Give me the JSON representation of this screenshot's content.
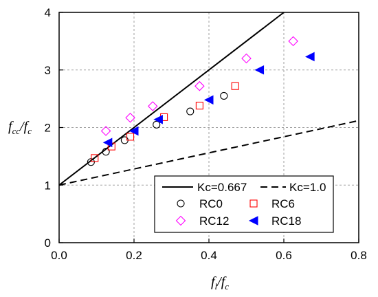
{
  "chart_data": {
    "type": "scatter",
    "title": "",
    "xlabel": {
      "main": "f",
      "sub": "l",
      "sep": "/",
      "den": "f",
      "den_sub": "c"
    },
    "ylabel": {
      "main": "f",
      "sub": "cc",
      "sep": "/",
      "den": "f",
      "den_sub": "c"
    },
    "xlim": [
      0,
      0.8
    ],
    "ylim": [
      0,
      4
    ],
    "x_ticks": [
      "0.0",
      "0.2",
      "0.4",
      "0.6",
      "0.8"
    ],
    "y_ticks": [
      "0",
      "1",
      "2",
      "3",
      "4"
    ],
    "grid": true,
    "legend_position": "bottom-right",
    "lines": [
      {
        "name": "Kc=0.667",
        "style": "solid",
        "intercept": 1,
        "slope": 5.0
      },
      {
        "name": "Kc=1.0",
        "style": "dashed",
        "intercept": 1,
        "slope": 1.4
      }
    ],
    "series": [
      {
        "name": "RC0",
        "marker": "circle",
        "color": "#000000",
        "points": [
          [
            0.085,
            1.4
          ],
          [
            0.125,
            1.58
          ],
          [
            0.175,
            1.78
          ],
          [
            0.26,
            2.05
          ],
          [
            0.35,
            2.28
          ],
          [
            0.44,
            2.55
          ]
        ]
      },
      {
        "name": "RC6",
        "marker": "square",
        "color": "#ff0000",
        "points": [
          [
            0.095,
            1.47
          ],
          [
            0.14,
            1.67
          ],
          [
            0.19,
            1.84
          ],
          [
            0.28,
            2.18
          ],
          [
            0.375,
            2.38
          ],
          [
            0.47,
            2.72
          ]
        ]
      },
      {
        "name": "RC12",
        "marker": "diamond",
        "color": "#ff00ff",
        "points": [
          [
            0.125,
            1.94
          ],
          [
            0.19,
            2.17
          ],
          [
            0.25,
            2.37
          ],
          [
            0.375,
            2.72
          ],
          [
            0.5,
            3.2
          ],
          [
            0.625,
            3.5
          ]
        ]
      },
      {
        "name": "RC18",
        "marker": "triangle-left",
        "color": "#0000ff",
        "points": [
          [
            0.13,
            1.74
          ],
          [
            0.2,
            1.94
          ],
          [
            0.265,
            2.14
          ],
          [
            0.4,
            2.48
          ],
          [
            0.535,
            3.0
          ],
          [
            0.67,
            3.23
          ]
        ]
      }
    ]
  }
}
